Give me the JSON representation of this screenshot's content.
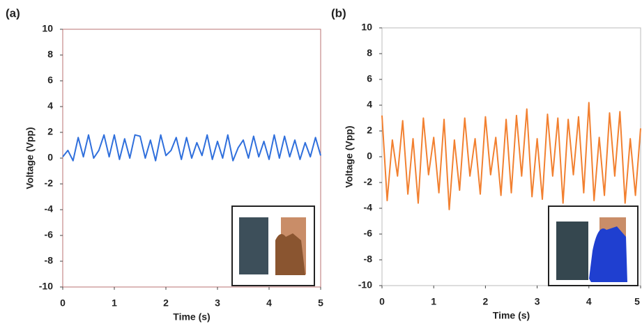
{
  "chart_data": [
    {
      "type": "line",
      "label": "(a)",
      "xlabel": "Time (s)",
      "ylabel": "Voltage (Vpp)",
      "xlim": [
        0,
        5
      ],
      "xticks": [
        0,
        1,
        2,
        3,
        4,
        5
      ],
      "ylim": [
        -10,
        10
      ],
      "yticks": [
        -10,
        -8,
        -6,
        -4,
        -2,
        0,
        2,
        4,
        6,
        8,
        10
      ],
      "frame_color": "#b87070",
      "x": [
        0,
        0.1,
        0.2,
        0.3,
        0.4,
        0.5,
        0.6,
        0.7,
        0.8,
        0.9,
        1,
        1.1,
        1.2,
        1.3,
        1.4,
        1.5,
        1.6,
        1.7,
        1.8,
        1.9,
        2,
        2.1,
        2.2,
        2.3,
        2.4,
        2.5,
        2.6,
        2.7,
        2.8,
        2.9,
        3,
        3.1,
        3.2,
        3.3,
        3.4,
        3.5,
        3.6,
        3.7,
        3.8,
        3.9,
        4,
        4.1,
        4.2,
        4.3,
        4.4,
        4.5,
        4.6,
        4.7,
        4.8,
        4.9,
        5
      ],
      "series": [
        {
          "color": "#2f6fdc",
          "values": [
            0.1,
            0.6,
            -0.2,
            1.6,
            0.1,
            1.8,
            0.0,
            0.6,
            1.8,
            0.1,
            1.8,
            -0.1,
            1.5,
            0.0,
            1.8,
            1.7,
            0.0,
            1.4,
            -0.2,
            1.8,
            0.2,
            0.6,
            1.6,
            -0.1,
            1.6,
            0.0,
            1.2,
            0.2,
            1.8,
            -0.1,
            1.3,
            0.0,
            1.8,
            -0.2,
            0.8,
            1.4,
            0.0,
            1.7,
            0.1,
            1.3,
            -0.1,
            1.8,
            0.0,
            1.7,
            0.1,
            1.4,
            -0.1,
            1.2,
            0.1,
            1.6,
            0.2
          ]
        }
      ]
    },
    {
      "type": "line",
      "label": "(b)",
      "xlabel": "Time (s)",
      "ylabel": "Voltage (Vpp)",
      "xlim": [
        0,
        5
      ],
      "xticks": [
        0,
        1,
        2,
        3,
        4,
        5
      ],
      "ylim": [
        -10,
        10
      ],
      "yticks": [
        -10,
        -8,
        -6,
        -4,
        -2,
        0,
        2,
        4,
        6,
        8,
        10
      ],
      "frame_color": "#bbbbbb",
      "x": [
        0,
        0.1,
        0.2,
        0.3,
        0.4,
        0.5,
        0.6,
        0.7,
        0.8,
        0.9,
        1,
        1.1,
        1.2,
        1.3,
        1.4,
        1.5,
        1.6,
        1.7,
        1.8,
        1.9,
        2,
        2.1,
        2.2,
        2.3,
        2.4,
        2.5,
        2.6,
        2.7,
        2.8,
        2.9,
        3,
        3.1,
        3.2,
        3.3,
        3.4,
        3.5,
        3.6,
        3.7,
        3.8,
        3.9,
        4,
        4.1,
        4.2,
        4.3,
        4.4,
        4.5,
        4.6,
        4.7,
        4.8,
        4.9,
        5
      ],
      "series": [
        {
          "color": "#f28030",
          "values": [
            3.2,
            -3.4,
            1.3,
            -1.5,
            2.8,
            -2.9,
            1.4,
            -3.6,
            3.0,
            -1.4,
            1.5,
            -2.8,
            2.9,
            -4.1,
            1.3,
            -2.6,
            3.0,
            -1.5,
            1.4,
            -2.9,
            3.1,
            -1.4,
            1.5,
            -3.0,
            2.9,
            -2.8,
            3.2,
            -1.5,
            3.7,
            -3.1,
            1.4,
            -3.3,
            3.3,
            -1.5,
            3.0,
            -3.6,
            2.9,
            -1.4,
            3.1,
            -2.8,
            4.2,
            -3.4,
            1.5,
            -3.0,
            3.4,
            -1.5,
            3.5,
            -3.6,
            1.4,
            -3.0,
            2.2
          ]
        }
      ]
    }
  ]
}
